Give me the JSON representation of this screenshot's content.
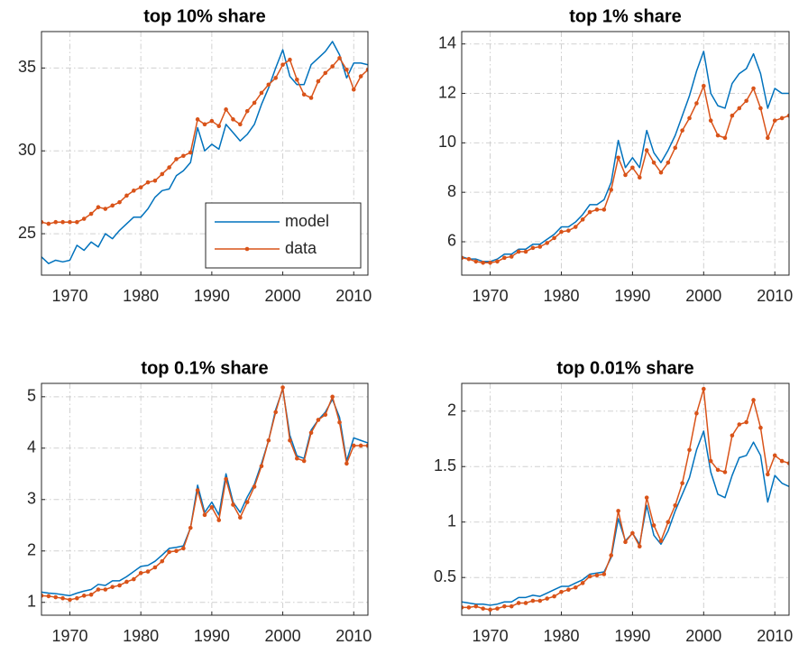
{
  "chart_data": [
    {
      "type": "line",
      "title": "top 10% share",
      "x": [
        1966,
        1967,
        1968,
        1969,
        1970,
        1971,
        1972,
        1973,
        1974,
        1975,
        1976,
        1977,
        1978,
        1979,
        1980,
        1981,
        1982,
        1983,
        1984,
        1985,
        1986,
        1987,
        1988,
        1989,
        1990,
        1991,
        1992,
        1993,
        1994,
        1995,
        1996,
        1997,
        1998,
        1999,
        2000,
        2001,
        2002,
        2003,
        2004,
        2005,
        2006,
        2007,
        2008,
        2009,
        2010,
        2011,
        2012
      ],
      "xlim": [
        1966,
        2012
      ],
      "xticks": [
        1970,
        1980,
        1990,
        2000,
        2010
      ],
      "ylim": [
        22.5,
        37.2
      ],
      "yticks": [
        25,
        30,
        35
      ],
      "grid": true,
      "legend": "southeast",
      "series": [
        {
          "name": "model",
          "color": "#0072bd",
          "marker": false,
          "values": [
            23.6,
            23.2,
            23.4,
            23.3,
            23.4,
            24.3,
            24.0,
            24.5,
            24.2,
            25.0,
            24.7,
            25.2,
            25.6,
            26.0,
            26.0,
            26.5,
            27.2,
            27.6,
            27.7,
            28.5,
            28.8,
            29.3,
            31.4,
            30.0,
            30.4,
            30.1,
            31.6,
            31.1,
            30.6,
            31.0,
            31.6,
            32.8,
            33.8,
            35.0,
            36.1,
            34.5,
            34.0,
            34.0,
            35.2,
            35.6,
            36.0,
            36.6,
            35.8,
            34.4,
            35.3,
            35.3,
            35.2
          ]
        },
        {
          "name": "data",
          "color": "#d95319",
          "marker": true,
          "values": [
            25.7,
            25.6,
            25.7,
            25.7,
            25.7,
            25.7,
            25.9,
            26.2,
            26.6,
            26.5,
            26.7,
            26.9,
            27.3,
            27.6,
            27.8,
            28.1,
            28.2,
            28.6,
            29.0,
            29.5,
            29.7,
            29.9,
            31.9,
            31.6,
            31.8,
            31.5,
            32.5,
            31.9,
            31.6,
            32.4,
            32.9,
            33.5,
            34.0,
            34.4,
            35.2,
            35.5,
            34.3,
            33.4,
            33.2,
            34.2,
            34.7,
            35.1,
            35.6,
            34.9,
            33.7,
            34.5,
            34.9
          ]
        }
      ]
    },
    {
      "type": "line",
      "title": "top 1% share",
      "x": [
        1966,
        1967,
        1968,
        1969,
        1970,
        1971,
        1972,
        1973,
        1974,
        1975,
        1976,
        1977,
        1978,
        1979,
        1980,
        1981,
        1982,
        1983,
        1984,
        1985,
        1986,
        1987,
        1988,
        1989,
        1990,
        1991,
        1992,
        1993,
        1994,
        1995,
        1996,
        1997,
        1998,
        1999,
        2000,
        2001,
        2002,
        2003,
        2004,
        2005,
        2006,
        2007,
        2008,
        2009,
        2010,
        2011,
        2012
      ],
      "xlim": [
        1966,
        2012
      ],
      "xticks": [
        1970,
        1980,
        1990,
        2000,
        2010
      ],
      "ylim": [
        4.65,
        14.5
      ],
      "yticks": [
        6,
        8,
        10,
        12,
        14
      ],
      "grid": true,
      "series": [
        {
          "color": "#0072bd",
          "marker": false,
          "values": [
            5.4,
            5.3,
            5.3,
            5.2,
            5.2,
            5.3,
            5.5,
            5.5,
            5.7,
            5.7,
            5.9,
            5.9,
            6.1,
            6.3,
            6.6,
            6.6,
            6.8,
            7.1,
            7.5,
            7.5,
            7.7,
            8.4,
            10.1,
            9.0,
            9.4,
            9.0,
            10.5,
            9.6,
            9.2,
            9.7,
            10.3,
            11.1,
            11.9,
            12.9,
            13.7,
            12.0,
            11.5,
            11.4,
            12.4,
            12.8,
            13.0,
            13.6,
            12.8,
            11.4,
            12.2,
            12.0,
            12.0
          ]
        },
        {
          "color": "#d95319",
          "marker": true,
          "values": [
            5.35,
            5.3,
            5.2,
            5.15,
            5.15,
            5.2,
            5.35,
            5.4,
            5.6,
            5.6,
            5.75,
            5.8,
            5.95,
            6.15,
            6.4,
            6.45,
            6.6,
            6.9,
            7.2,
            7.3,
            7.3,
            8.1,
            9.4,
            8.7,
            9.0,
            8.6,
            9.7,
            9.2,
            8.8,
            9.2,
            9.8,
            10.5,
            11.0,
            11.6,
            12.3,
            10.9,
            10.3,
            10.2,
            11.1,
            11.4,
            11.7,
            12.2,
            11.4,
            10.2,
            10.9,
            11.0,
            11.1
          ]
        }
      ]
    },
    {
      "type": "line",
      "title": "top 0.1% share",
      "x": [
        1966,
        1967,
        1968,
        1969,
        1970,
        1971,
        1972,
        1973,
        1974,
        1975,
        1976,
        1977,
        1978,
        1979,
        1980,
        1981,
        1982,
        1983,
        1984,
        1985,
        1986,
        1987,
        1988,
        1989,
        1990,
        1991,
        1992,
        1993,
        1994,
        1995,
        1996,
        1997,
        1998,
        1999,
        2000,
        2001,
        2002,
        2003,
        2004,
        2005,
        2006,
        2007,
        2008,
        2009,
        2010,
        2011,
        2012
      ],
      "xlim": [
        1966,
        2012
      ],
      "xticks": [
        1970,
        1980,
        1990,
        2000,
        2010
      ],
      "ylim": [
        0.75,
        5.26
      ],
      "yticks": [
        1,
        2,
        3,
        4,
        5
      ],
      "grid": true,
      "series": [
        {
          "color": "#0072bd",
          "marker": false,
          "values": [
            1.2,
            1.18,
            1.17,
            1.15,
            1.13,
            1.18,
            1.22,
            1.25,
            1.35,
            1.33,
            1.42,
            1.42,
            1.5,
            1.6,
            1.7,
            1.72,
            1.8,
            1.92,
            2.05,
            2.07,
            2.1,
            2.45,
            3.28,
            2.75,
            2.95,
            2.7,
            3.5,
            2.95,
            2.75,
            3.05,
            3.3,
            3.7,
            4.15,
            4.75,
            5.15,
            4.25,
            3.85,
            3.8,
            4.35,
            4.55,
            4.7,
            4.95,
            4.6,
            3.75,
            4.2,
            4.15,
            4.1
          ]
        },
        {
          "color": "#d95319",
          "marker": true,
          "values": [
            1.13,
            1.12,
            1.1,
            1.08,
            1.05,
            1.08,
            1.13,
            1.15,
            1.25,
            1.25,
            1.3,
            1.33,
            1.4,
            1.45,
            1.57,
            1.6,
            1.68,
            1.8,
            1.98,
            2.0,
            2.05,
            2.45,
            3.18,
            2.7,
            2.85,
            2.6,
            3.4,
            2.9,
            2.65,
            2.95,
            3.25,
            3.65,
            4.15,
            4.7,
            5.18,
            4.15,
            3.8,
            3.75,
            4.3,
            4.55,
            4.65,
            5.0,
            4.5,
            3.7,
            4.05,
            4.05,
            4.05
          ]
        }
      ]
    },
    {
      "type": "line",
      "title": "top 0.01% share",
      "x": [
        1966,
        1967,
        1968,
        1969,
        1970,
        1971,
        1972,
        1973,
        1974,
        1975,
        1976,
        1977,
        1978,
        1979,
        1980,
        1981,
        1982,
        1983,
        1984,
        1985,
        1986,
        1987,
        1988,
        1989,
        1990,
        1991,
        1992,
        1993,
        1994,
        1995,
        1996,
        1997,
        1998,
        1999,
        2000,
        2001,
        2002,
        2003,
        2004,
        2005,
        2006,
        2007,
        2008,
        2009,
        2010,
        2011,
        2012
      ],
      "xlim": [
        1966,
        2012
      ],
      "xticks": [
        1970,
        1980,
        1990,
        2000,
        2010
      ],
      "ylim": [
        0.16,
        2.25
      ],
      "yticks": [
        0.5,
        1,
        1.5,
        2
      ],
      "grid": true,
      "series": [
        {
          "color": "#0072bd",
          "marker": false,
          "values": [
            0.28,
            0.27,
            0.26,
            0.26,
            0.25,
            0.26,
            0.28,
            0.28,
            0.32,
            0.32,
            0.34,
            0.33,
            0.36,
            0.39,
            0.42,
            0.42,
            0.45,
            0.48,
            0.53,
            0.54,
            0.55,
            0.68,
            1.03,
            0.83,
            0.9,
            0.8,
            1.15,
            0.88,
            0.8,
            0.92,
            1.1,
            1.25,
            1.4,
            1.65,
            1.82,
            1.45,
            1.25,
            1.22,
            1.42,
            1.58,
            1.6,
            1.72,
            1.6,
            1.18,
            1.42,
            1.35,
            1.32
          ]
        },
        {
          "color": "#d95319",
          "marker": true,
          "values": [
            0.23,
            0.23,
            0.24,
            0.22,
            0.21,
            0.22,
            0.24,
            0.24,
            0.27,
            0.27,
            0.29,
            0.29,
            0.31,
            0.33,
            0.37,
            0.39,
            0.41,
            0.45,
            0.51,
            0.52,
            0.53,
            0.7,
            1.1,
            0.82,
            0.9,
            0.78,
            1.22,
            0.97,
            0.83,
            1.0,
            1.15,
            1.35,
            1.65,
            1.98,
            2.2,
            1.55,
            1.47,
            1.45,
            1.78,
            1.88,
            1.9,
            2.1,
            1.85,
            1.43,
            1.6,
            1.55,
            1.53
          ]
        }
      ]
    }
  ]
}
